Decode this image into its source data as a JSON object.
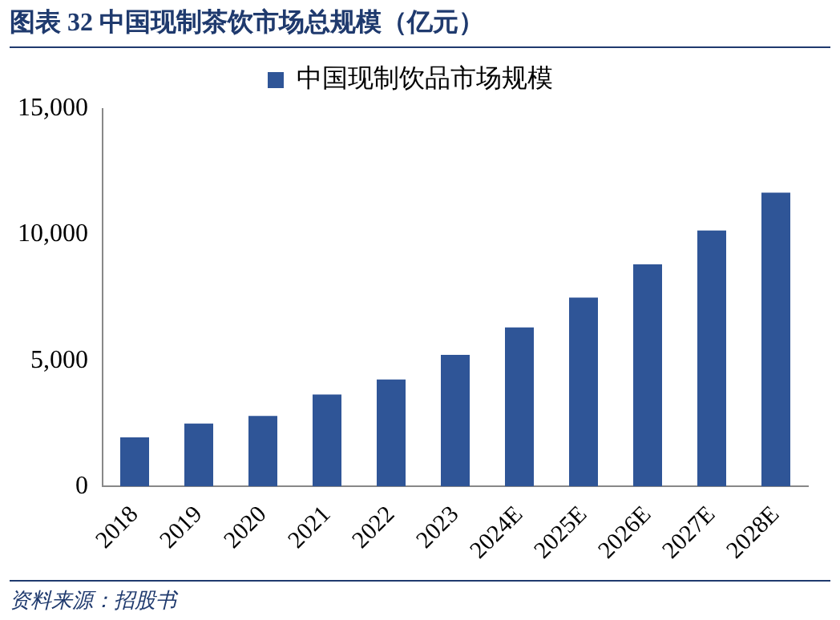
{
  "chart_data": {
    "type": "bar",
    "title": "图表 32 中国现制茶饮市场总规模（亿元）",
    "categories": [
      "2018",
      "2019",
      "2020",
      "2021",
      "2022",
      "2023",
      "2024E",
      "2025E",
      "2026E",
      "2027E",
      "2028E"
    ],
    "series": [
      {
        "name": "中国现制饮品市场规模",
        "color": "#2f5597",
        "values": [
          1950,
          2500,
          2800,
          3650,
          4250,
          5230,
          6320,
          7500,
          8820,
          10170,
          11670
        ]
      }
    ],
    "ylim": [
      0,
      15000
    ],
    "yticks": [
      0,
      {
        "value": 5000,
        "label": "5,000"
      },
      {
        "value": 10000,
        "label": "10,000"
      },
      {
        "value": 15000,
        "label": "15,000"
      }
    ],
    "grid": false,
    "legend": "top",
    "annotations": [
      "资料来源：招股书"
    ]
  }
}
